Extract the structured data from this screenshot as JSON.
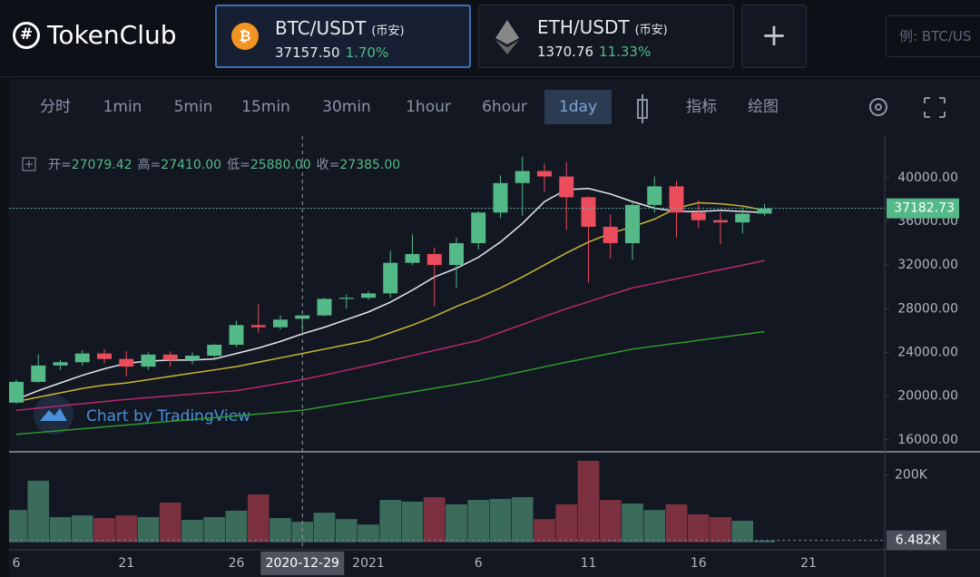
{
  "header": {
    "logo": "TokenClub",
    "pairs": [
      {
        "symbol": "BTC/USDT",
        "exchange": "(币安)",
        "price": "37157.50",
        "change": "1.70%"
      },
      {
        "symbol": "ETH/USDT",
        "exchange": "(币安)",
        "price": "1370.76",
        "change": "11.33%"
      }
    ],
    "add_button": "+",
    "search_placeholder": "例: BTC/US"
  },
  "toolbar": {
    "intervals": [
      "分时",
      "1min",
      "5min",
      "15min",
      "30min",
      "1hour",
      "6hour",
      "1day"
    ],
    "active": "1day",
    "indicators": "指标",
    "drawing": "绘图"
  },
  "chart_data": {
    "type": "candlestick",
    "legend_labels": [
      "开=",
      "高=",
      "低=",
      "收="
    ],
    "legend_values": [
      "27079.42",
      "27410.00",
      "25880.00",
      "27385.00"
    ],
    "watermark": "Chart by TradingView",
    "categories": [
      "6",
      null,
      null,
      null,
      null,
      "21",
      null,
      null,
      null,
      null,
      "26",
      null,
      null,
      "2020-12-29",
      null,
      null,
      "2021",
      null,
      null,
      null,
      null,
      "6",
      null,
      null,
      null,
      null,
      "11",
      null,
      null,
      null,
      null,
      "16",
      null,
      null,
      null,
      null,
      "21"
    ],
    "open": [
      19400,
      21300,
      22800,
      23100,
      23900,
      23400,
      22700,
      23800,
      23300,
      23700,
      24700,
      26500,
      26300,
      27079.42,
      27385,
      28900,
      29000,
      29400,
      32200,
      33000,
      32000,
      34000,
      36800,
      39500,
      40600,
      40100,
      38200,
      35500,
      34000,
      37500,
      39200,
      36800,
      36100,
      35900,
      36700,
      null,
      null
    ],
    "high": [
      21500,
      23800,
      23300,
      24200,
      24300,
      24100,
      24000,
      24100,
      24000,
      24800,
      26900,
      28400,
      27400,
      27410,
      29000,
      29300,
      29600,
      33300,
      34800,
      33600,
      34500,
      36900,
      40200,
      41900,
      41300,
      41400,
      38300,
      36600,
      37800,
      40100,
      39700,
      37900,
      36800,
      37300,
      37600,
      null,
      null
    ],
    "low": [
      19300,
      21200,
      22400,
      22800,
      23000,
      21800,
      22400,
      22700,
      22900,
      23500,
      24500,
      25800,
      26100,
      25880,
      27300,
      28000,
      28800,
      29000,
      32000,
      28200,
      29900,
      33400,
      36300,
      36500,
      38700,
      35200,
      30400,
      32600,
      32500,
      36800,
      34500,
      35400,
      33900,
      34900,
      36500,
      null,
      null
    ],
    "close": [
      21300,
      22800,
      23100,
      23900,
      23400,
      22700,
      23800,
      23300,
      23700,
      24700,
      26500,
      26300,
      27000,
      27385,
      28900,
      29000,
      29400,
      32200,
      33000,
      32000,
      34000,
      36800,
      39500,
      40600,
      40100,
      38200,
      35500,
      34000,
      37500,
      39200,
      36800,
      36100,
      35900,
      36700,
      37182.73,
      null,
      null
    ],
    "up_color": "#53b987",
    "down_color": "#eb4d5c",
    "ma_lines": [
      {
        "color": "#e6e8ee",
        "values": [
          19700,
          20500,
          21200,
          21900,
          22500,
          23000,
          23200,
          23300,
          23300,
          23400,
          23900,
          24400,
          25000,
          25700,
          26300,
          27000,
          27700,
          28600,
          29700,
          30900,
          31700,
          32700,
          34100,
          35800,
          37800,
          38900,
          39000,
          38500,
          37800,
          37200,
          36900,
          36900,
          37000,
          36900,
          36800,
          null,
          null
        ]
      },
      {
        "color": "#c9b634",
        "values": [
          19500,
          19900,
          20300,
          20700,
          21000,
          21200,
          21500,
          21800,
          22100,
          22400,
          22700,
          23100,
          23500,
          23900,
          24300,
          24700,
          25100,
          25800,
          26500,
          27300,
          28200,
          29000,
          29900,
          30900,
          32000,
          33100,
          34100,
          34900,
          35500,
          36200,
          37200,
          37700,
          37600,
          37400,
          37000,
          null,
          null
        ]
      },
      {
        "color": "#b5286e",
        "values": [
          18700,
          18900,
          19100,
          19300,
          19500,
          19700,
          19860,
          20020,
          20180,
          20340,
          20500,
          20830,
          21170,
          21500,
          21930,
          22370,
          22800,
          23260,
          23720,
          24180,
          24640,
          25100,
          25830,
          26550,
          27280,
          28000,
          28630,
          29270,
          29900,
          30320,
          30730,
          31150,
          31570,
          31980,
          32400,
          null,
          null
        ]
      },
      {
        "color": "#2f9a2b",
        "values": [
          16500,
          16670,
          16840,
          17010,
          17180,
          17350,
          17520,
          17690,
          17850,
          18020,
          18190,
          18360,
          18530,
          18700,
          19030,
          19370,
          19700,
          20040,
          20380,
          20720,
          21060,
          21400,
          21830,
          22250,
          22680,
          23100,
          23500,
          23900,
          24300,
          24570,
          24830,
          25100,
          25370,
          25630,
          25900,
          null,
          null
        ]
      }
    ],
    "ylim": [
      14900,
      43800
    ],
    "yticks": [
      {
        "value": 16000,
        "label": "16000.00"
      },
      {
        "value": 20000,
        "label": "20000.00"
      },
      {
        "value": 24000,
        "label": "24000.00"
      },
      {
        "value": 28000,
        "label": "28000.00"
      },
      {
        "value": 32000,
        "label": "32000.00"
      },
      {
        "value": 36000,
        "label": "36000.00"
      },
      {
        "value": 40000,
        "label": "40000.00"
      }
    ],
    "volume": [
      97,
      184,
      76,
      81,
      73,
      81,
      76,
      119,
      68,
      76,
      95,
      143,
      73,
      62,
      89,
      70,
      54,
      127,
      122,
      135,
      114,
      127,
      130,
      135,
      70,
      114,
      243,
      127,
      116,
      97,
      114,
      84,
      76,
      65,
      6.482,
      null,
      null
    ],
    "volume_labels": [
      null,
      null,
      null,
      null,
      null,
      null,
      null,
      null,
      null,
      null,
      null,
      null,
      null,
      null,
      null,
      null,
      null,
      null,
      null,
      null,
      null,
      null,
      null,
      null,
      null,
      null,
      null,
      null,
      null,
      null,
      null,
      null,
      null,
      null,
      "6.482K",
      null,
      null
    ],
    "volume_up_color": "#3b6b5a",
    "volume_down_color": "#7b3140",
    "volume_ylim": [
      0,
      250
    ],
    "volume_yticks": [
      {
        "value": 200,
        "label": "200K"
      }
    ]
  }
}
